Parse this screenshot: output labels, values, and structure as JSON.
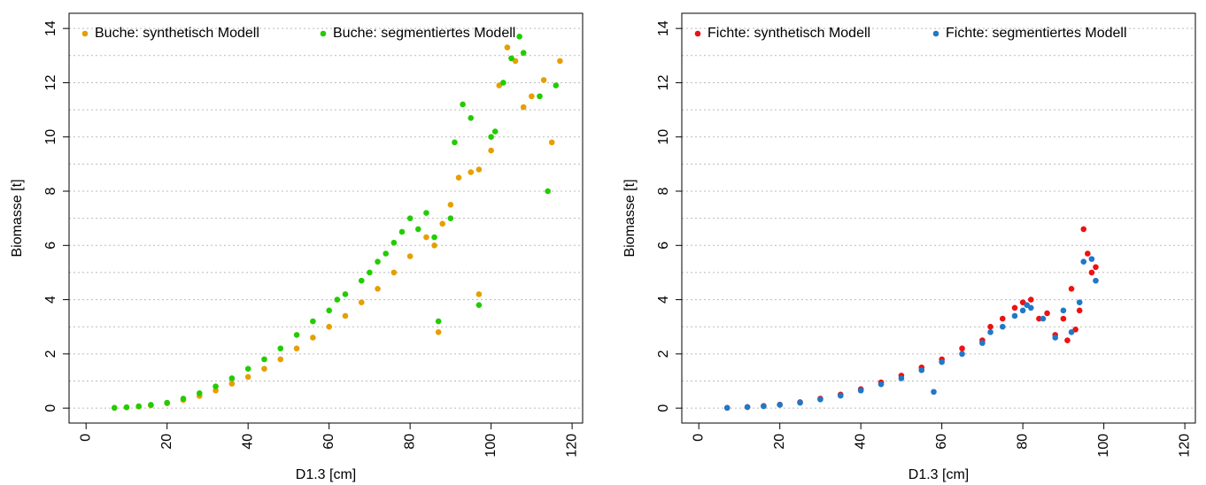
{
  "chart_data": [
    {
      "type": "scatter",
      "xlabel": "D1.3 [cm]",
      "ylabel": "Biomasse [t]",
      "xlim": [
        -4.2,
        122.6
      ],
      "ylim": [
        -0.55,
        14.56
      ],
      "xticks": [
        0,
        20,
        40,
        60,
        80,
        100,
        120
      ],
      "yticks": [
        0,
        2,
        4,
        6,
        8,
        10,
        12,
        14
      ],
      "ygrid": [
        0,
        1,
        2,
        3,
        4,
        5,
        6,
        7,
        8,
        9,
        10,
        11,
        12,
        13,
        14
      ],
      "legend": "top",
      "series": [
        {
          "name": "Buche: synthetisch Modell",
          "color": "#e69f00",
          "x": [
            7,
            10,
            13,
            16,
            20,
            24,
            28,
            32,
            36,
            40,
            44,
            48,
            52,
            56,
            60,
            64,
            68,
            72,
            76,
            80,
            84,
            86,
            87,
            88,
            90,
            92,
            95,
            97,
            97,
            100,
            102,
            104,
            106,
            108,
            110,
            113,
            115,
            117
          ],
          "values": [
            0.01,
            0.03,
            0.06,
            0.1,
            0.18,
            0.3,
            0.45,
            0.65,
            0.9,
            1.15,
            1.45,
            1.8,
            2.2,
            2.6,
            3.0,
            3.4,
            3.9,
            4.4,
            5.0,
            5.6,
            6.3,
            6.0,
            2.8,
            6.8,
            7.5,
            8.5,
            8.7,
            8.8,
            4.2,
            9.5,
            11.9,
            13.3,
            12.8,
            11.1,
            11.5,
            12.1,
            9.8,
            12.8
          ]
        },
        {
          "name": "Buche: segmentiertes Modell",
          "color": "#22cc00",
          "x": [
            7,
            10,
            13,
            16,
            20,
            24,
            28,
            32,
            36,
            40,
            44,
            48,
            52,
            56,
            60,
            62,
            64,
            68,
            70,
            72,
            74,
            76,
            78,
            80,
            82,
            84,
            86,
            87,
            90,
            91,
            93,
            95,
            97,
            100,
            101,
            103,
            105,
            107,
            108,
            112,
            114,
            116
          ],
          "values": [
            0.01,
            0.03,
            0.07,
            0.12,
            0.2,
            0.35,
            0.55,
            0.8,
            1.1,
            1.45,
            1.8,
            2.2,
            2.7,
            3.2,
            3.6,
            4.0,
            4.2,
            4.7,
            5.0,
            5.4,
            5.7,
            6.1,
            6.5,
            7.0,
            6.6,
            7.2,
            6.3,
            3.2,
            7.0,
            9.8,
            11.2,
            10.7,
            3.8,
            10.0,
            10.2,
            12.0,
            12.9,
            13.7,
            13.1,
            11.5,
            8.0,
            11.9
          ]
        }
      ]
    },
    {
      "type": "scatter",
      "xlabel": "D1.3 [cm]",
      "ylabel": "Biomasse [t]",
      "xlim": [
        -4.2,
        122.6
      ],
      "ylim": [
        -0.55,
        14.56
      ],
      "xticks": [
        0,
        20,
        40,
        60,
        80,
        100,
        120
      ],
      "yticks": [
        0,
        2,
        4,
        6,
        8,
        10,
        12,
        14
      ],
      "ygrid": [
        0,
        1,
        2,
        3,
        4,
        5,
        6,
        7,
        8,
        9,
        10,
        11,
        12,
        13,
        14
      ],
      "legend": "top",
      "series": [
        {
          "name": "Fichte: synthetisch Modell",
          "color": "#ee1111",
          "x": [
            7,
            12,
            16,
            20,
            25,
            30,
            35,
            40,
            45,
            50,
            55,
            60,
            65,
            70,
            72,
            75,
            78,
            80,
            82,
            84,
            86,
            88,
            90,
            91,
            92,
            93,
            94,
            95,
            96,
            97,
            98
          ],
          "values": [
            0.01,
            0.04,
            0.08,
            0.13,
            0.22,
            0.35,
            0.5,
            0.7,
            0.95,
            1.2,
            1.5,
            1.8,
            2.2,
            2.5,
            3.0,
            3.3,
            3.7,
            3.9,
            4.0,
            3.3,
            3.5,
            2.7,
            3.3,
            2.5,
            4.4,
            2.9,
            3.6,
            6.6,
            5.7,
            5.0,
            5.2
          ]
        },
        {
          "name": "Fichte: segmentiertes Modell",
          "color": "#1f78c8",
          "x": [
            7,
            12,
            16,
            20,
            25,
            30,
            35,
            40,
            45,
            50,
            55,
            58,
            60,
            65,
            70,
            72,
            75,
            78,
            80,
            81,
            82,
            85,
            88,
            90,
            92,
            94,
            95,
            97,
            98
          ],
          "values": [
            0.01,
            0.04,
            0.07,
            0.12,
            0.2,
            0.32,
            0.46,
            0.65,
            0.88,
            1.1,
            1.4,
            0.6,
            1.7,
            2.0,
            2.4,
            2.8,
            3.0,
            3.4,
            3.6,
            3.8,
            3.7,
            3.3,
            2.6,
            3.6,
            2.8,
            3.9,
            5.4,
            5.5,
            4.7
          ]
        }
      ]
    }
  ]
}
